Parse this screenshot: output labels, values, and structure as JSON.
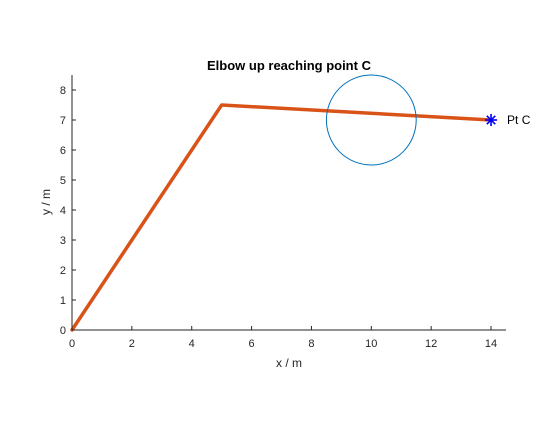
{
  "chart_data": {
    "type": "line",
    "title": "Elbow up reaching point C",
    "xlabel": "x / m",
    "ylabel": "y / m",
    "xlim": [
      0,
      14.5
    ],
    "ylim": [
      0,
      8.5
    ],
    "xticks": [
      0,
      2,
      4,
      6,
      8,
      10,
      12,
      14
    ],
    "yticks": [
      0,
      1,
      2,
      3,
      4,
      5,
      6,
      7,
      8
    ],
    "grid": false,
    "box": "left-bottom",
    "series": [
      {
        "kind": "line",
        "color": "#D95319",
        "points": [
          {
            "x": 0,
            "y": 0
          },
          {
            "x": 5,
            "y": 7.5
          },
          {
            "x": 14,
            "y": 7
          }
        ]
      },
      {
        "kind": "circle",
        "color": "#0072BD",
        "center": {
          "x": 10,
          "y": 7
        },
        "radius": 1.5
      },
      {
        "kind": "marker",
        "marker": "asterisk",
        "color": "#0000FF",
        "point": {
          "x": 14,
          "y": 7
        }
      }
    ],
    "annotations": [
      {
        "text": "Pt C",
        "x": 14,
        "y": 7
      }
    ],
    "colors": {
      "axis": "#262626",
      "arm": "#D95319",
      "circle": "#0072BD",
      "marker": "#0000FF"
    }
  }
}
